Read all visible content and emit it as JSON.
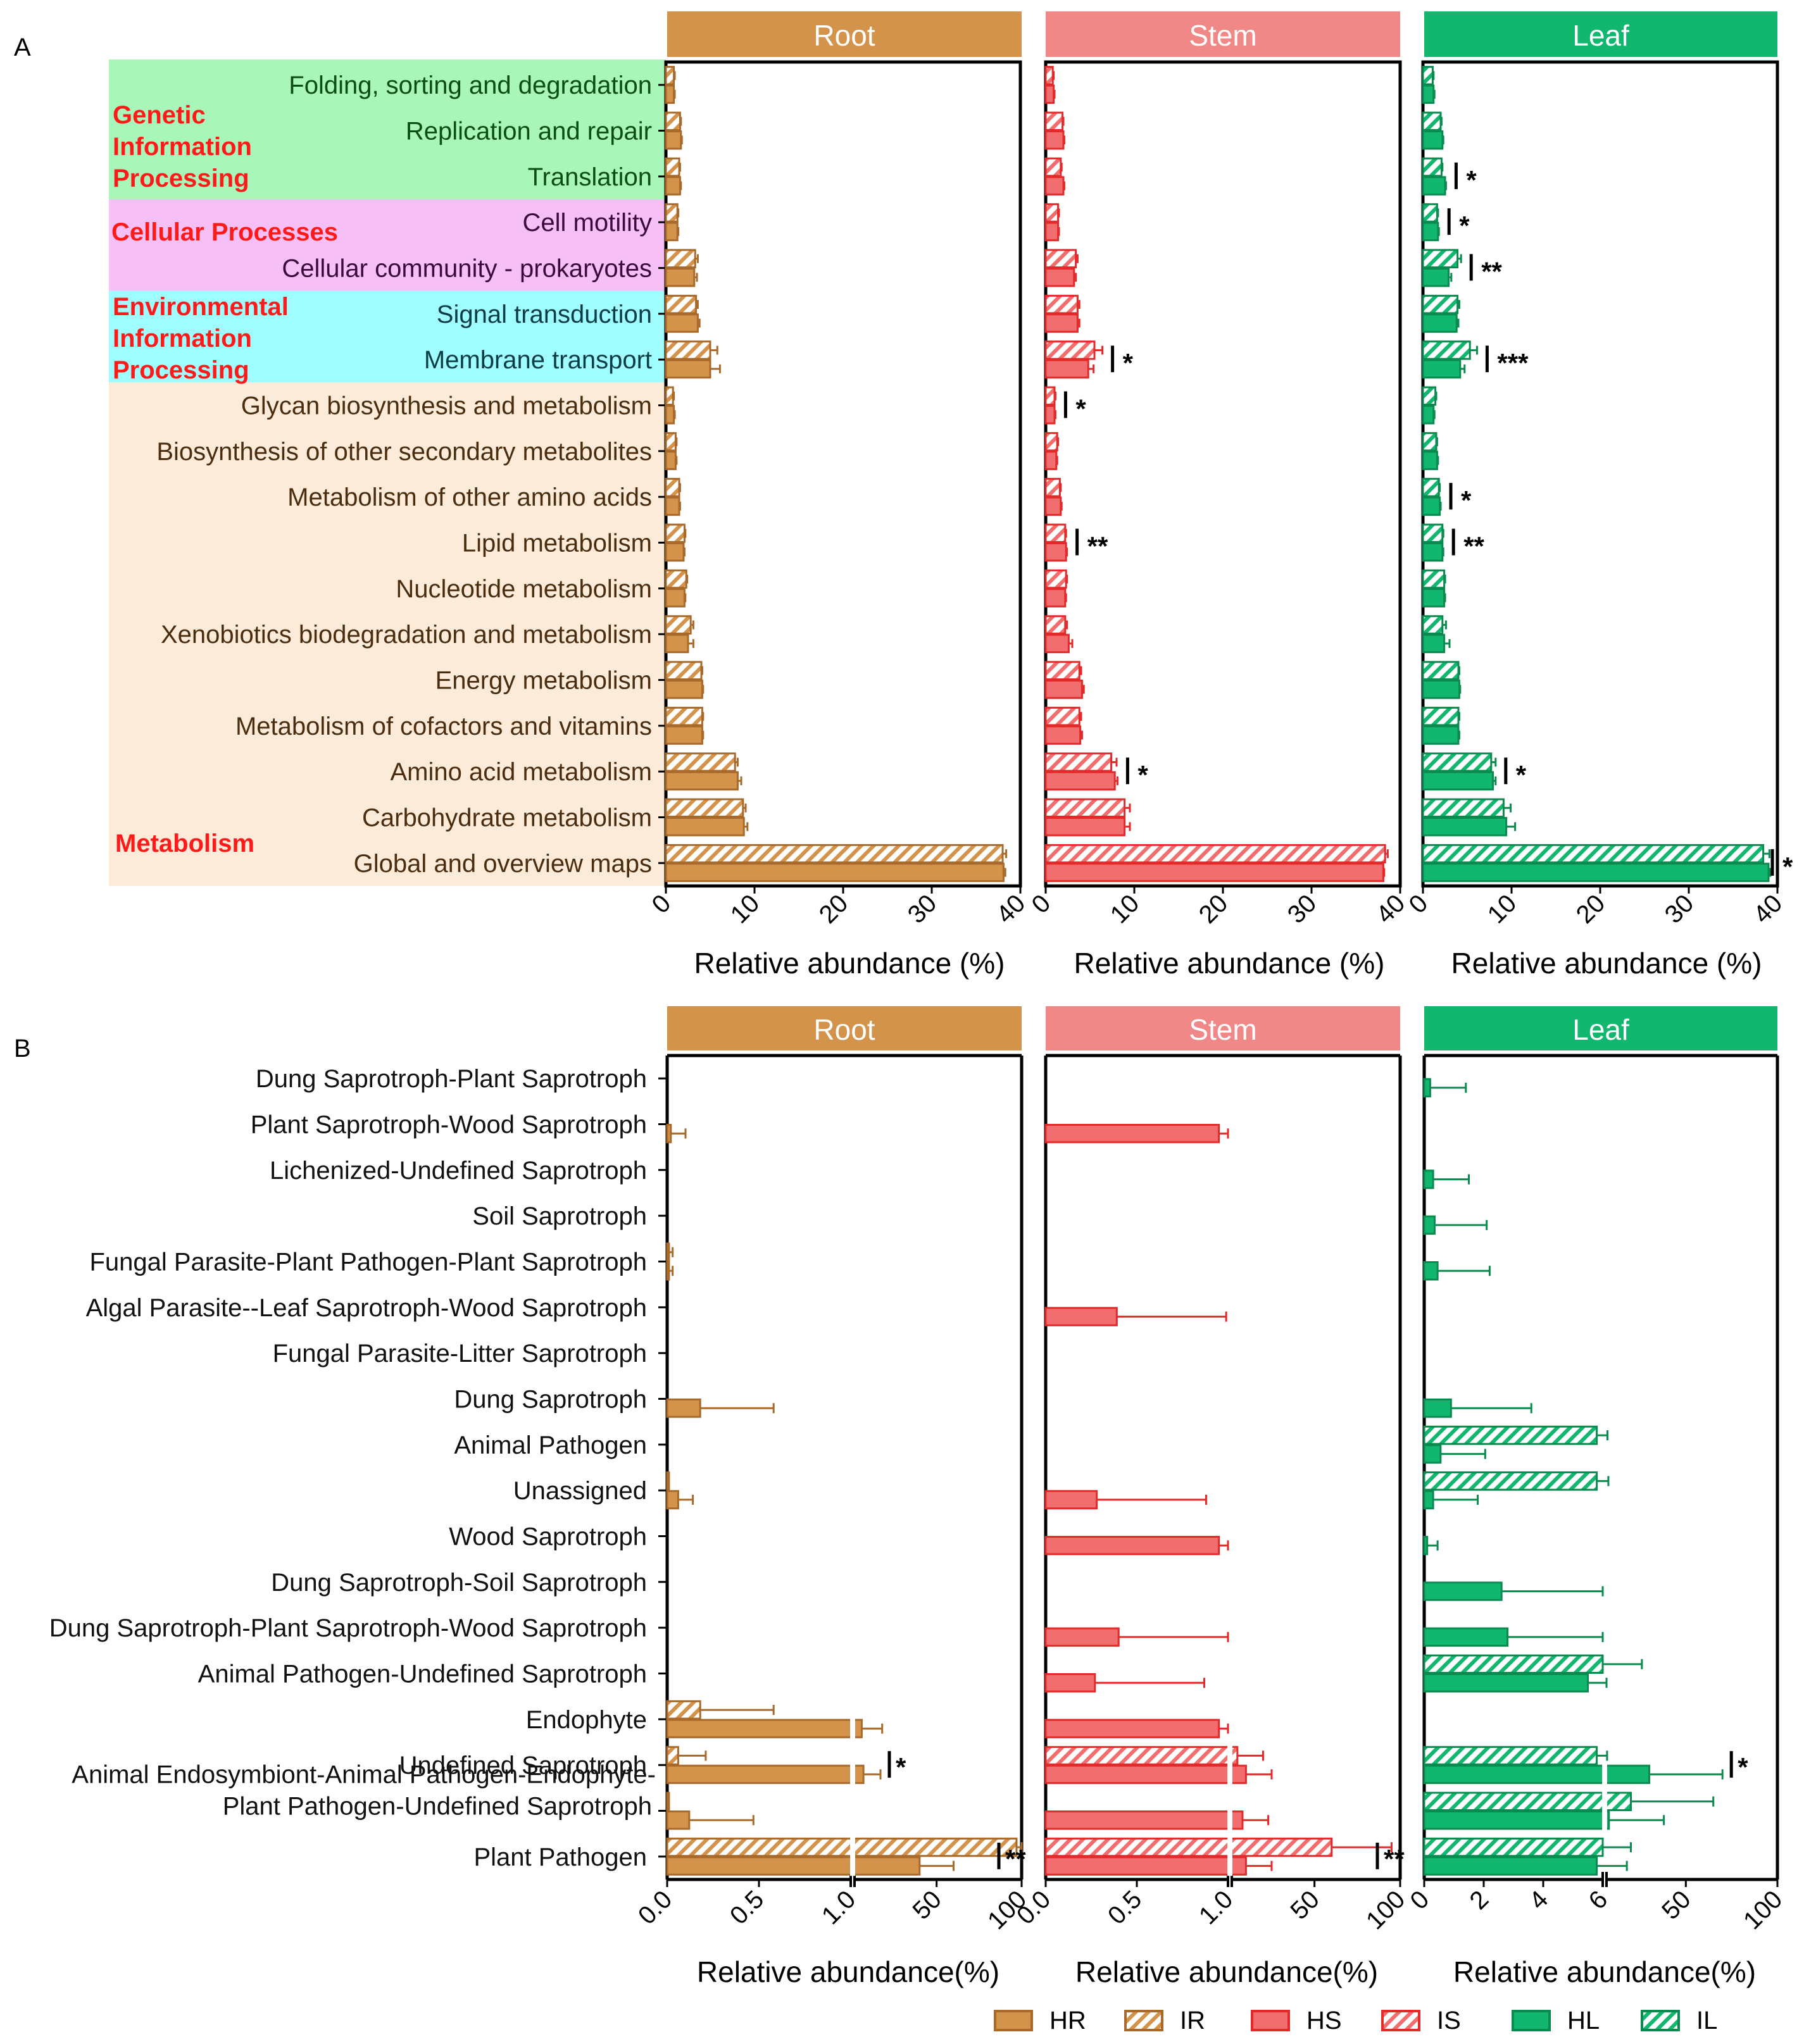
{
  "colors": {
    "root": "#d4934a",
    "root_dark": "#a86a2a",
    "stem": "#f08888",
    "stem_fill": "#f26d6d",
    "stem_dark": "#e22a2a",
    "leaf": "#12b76f",
    "leaf_dark": "#0a8a4f",
    "label_red": "#ff1a1a",
    "bg_genetic": "#a8f6b9",
    "bg_cellular": "#f6bff6",
    "bg_environmental": "#9ffcff",
    "bg_metabolism": "#fdebd9"
  },
  "panel_a": {
    "letter": "A",
    "organs": [
      "Root",
      "Stem",
      "Leaf"
    ],
    "xlabel": "Relative abundance (%)",
    "xticks": [
      "0",
      "10",
      "20",
      "30",
      "40"
    ],
    "categories": [
      {
        "name": "Genetic Information Processing",
        "lines": [
          "Genetic",
          "Information",
          "Processing"
        ],
        "rows": [
          0,
          2
        ]
      },
      {
        "name": "Cellular Processes",
        "lines": [
          "Cellular Processes"
        ],
        "rows": [
          3,
          4
        ]
      },
      {
        "name": "Environmental Information Processing",
        "lines": [
          "Environmental",
          "Information",
          "Processing"
        ],
        "rows": [
          5,
          6
        ]
      },
      {
        "name": "Metabolism",
        "lines": [
          "Metabolism"
        ],
        "rows": [
          7,
          17
        ]
      }
    ],
    "pathways": [
      "Folding, sorting and degradation",
      "Replication and repair",
      "Translation",
      "Cell motility",
      "Cellular community - prokaryotes",
      "Signal transduction",
      "Membrane transport",
      "Glycan biosynthesis and metabolism",
      "Biosynthesis of other secondary metabolites",
      "Metabolism of other amino acids",
      "Lipid metabolism",
      "Nucleotide metabolism",
      "Xenobiotics biodegradation and metabolism",
      "Energy metabolism",
      "Metabolism of cofactors and vitamins",
      "Amino acid metabolism",
      "Carbohydrate metabolism",
      "Global and overview maps"
    ]
  },
  "panel_b": {
    "letter": "B",
    "organs": [
      "Root",
      "Stem",
      "Leaf"
    ],
    "xlabel": "Relative abundance(%)",
    "guilds": [
      [
        "Dung Saprotroph-Plant Saprotroph"
      ],
      [
        "Plant Saprotroph-Wood Saprotroph"
      ],
      [
        "Lichenized-Undefined Saprotroph"
      ],
      [
        "Soil Saprotroph"
      ],
      [
        "Fungal Parasite-Plant Pathogen-Plant Saprotroph"
      ],
      [
        "Algal Parasite--Leaf Saprotroph-Wood Saprotroph"
      ],
      [
        "Fungal Parasite-Litter Saprotroph"
      ],
      [
        "Dung Saprotroph"
      ],
      [
        "Animal Pathogen"
      ],
      [
        "Unassigned"
      ],
      [
        "Wood Saprotroph"
      ],
      [
        "Dung Saprotroph-Soil Saprotroph"
      ],
      [
        "Dung Saprotroph-Plant Saprotroph-Wood Saprotroph"
      ],
      [
        "Animal Pathogen-Undefined Saprotroph"
      ],
      [
        "Endophyte"
      ],
      [
        "Undefined Saprotroph"
      ],
      [
        "Animal Endosymbiont-Animal Pathogen-Endophyte-",
        "Plant Pathogen-Undefined Saprotroph"
      ],
      [
        "Plant Pathogen"
      ]
    ],
    "xticks_root": [
      "0.0",
      "0.5",
      "1.0",
      "50",
      "100"
    ],
    "xticks_stem": [
      "0.0",
      "0.5",
      "1.0",
      "50",
      "100"
    ],
    "xticks_leaf": [
      "0",
      "2",
      "4",
      "6",
      "50",
      "100"
    ]
  },
  "legend": [
    {
      "label": "HR",
      "organ": "root",
      "hatched": false
    },
    {
      "label": "IR",
      "organ": "root",
      "hatched": true
    },
    {
      "label": "HS",
      "organ": "stem",
      "hatched": false
    },
    {
      "label": "IS",
      "organ": "stem",
      "hatched": true
    },
    {
      "label": "HL",
      "organ": "leaf",
      "hatched": false
    },
    {
      "label": "IL",
      "organ": "leaf",
      "hatched": true
    }
  ],
  "chart_data": [
    {
      "panel": "A",
      "type": "bar",
      "orientation": "horizontal",
      "xlabel": "Relative abundance (%)",
      "xlim": [
        0,
        40
      ],
      "categories": [
        "Folding, sorting and degradation",
        "Replication and repair",
        "Translation",
        "Cell motility",
        "Cellular community - prokaryotes",
        "Signal transduction",
        "Membrane transport",
        "Glycan biosynthesis and metabolism",
        "Biosynthesis of other secondary metabolites",
        "Metabolism of other amino acids",
        "Lipid metabolism",
        "Nucleotide metabolism",
        "Xenobiotics biodegradation and metabolism",
        "Energy metabolism",
        "Metabolism of cofactors and vitamins",
        "Amino acid metabolism",
        "Carbohydrate metabolism",
        "Global and overview maps"
      ],
      "facets": [
        {
          "organ": "Root",
          "series": [
            {
              "name": "IR",
              "values": [
                0.9,
                1.6,
                1.5,
                1.3,
                3.3,
                3.4,
                5.0,
                0.8,
                1.1,
                1.5,
                2.1,
                2.3,
                2.8,
                4.0,
                4.1,
                7.8,
                8.7,
                38.0
              ],
              "errors": [
                0.1,
                0.1,
                0.1,
                0.1,
                0.3,
                0.2,
                0.8,
                0.1,
                0.1,
                0.1,
                0.1,
                0.1,
                0.3,
                0.1,
                0.1,
                0.3,
                0.3,
                0.4
              ]
            },
            {
              "name": "HR",
              "values": [
                0.9,
                1.7,
                1.6,
                1.3,
                3.2,
                3.6,
                5.0,
                0.9,
                1.1,
                1.5,
                2.0,
                2.1,
                2.5,
                4.1,
                4.1,
                8.1,
                8.8,
                38.1
              ],
              "errors": [
                0.1,
                0.1,
                0.1,
                0.1,
                0.3,
                0.2,
                1.1,
                0.1,
                0.1,
                0.1,
                0.1,
                0.1,
                0.6,
                0.1,
                0.1,
                0.4,
                0.4,
                0.2
              ]
            }
          ],
          "significance": []
        },
        {
          "organ": "Stem",
          "series": [
            {
              "name": "IS",
              "values": [
                0.8,
                1.9,
                1.7,
                1.4,
                3.4,
                3.6,
                5.5,
                1.0,
                1.3,
                1.6,
                2.2,
                2.3,
                2.2,
                3.8,
                3.8,
                7.4,
                8.9,
                38.3
              ],
              "errors": [
                0.1,
                0.1,
                0.1,
                0.1,
                0.2,
                0.2,
                0.9,
                0.1,
                0.1,
                0.1,
                0.1,
                0.1,
                0.2,
                0.2,
                0.2,
                0.6,
                0.6,
                0.3
              ]
            },
            {
              "name": "HS",
              "values": [
                0.9,
                2.0,
                2.0,
                1.4,
                3.2,
                3.6,
                4.8,
                1.0,
                1.2,
                1.7,
                2.3,
                2.2,
                2.6,
                4.1,
                3.9,
                7.8,
                8.9,
                38.1
              ],
              "errors": [
                0.1,
                0.1,
                0.1,
                0.1,
                0.2,
                0.2,
                0.6,
                0.1,
                0.1,
                0.1,
                0.1,
                0.1,
                0.4,
                0.2,
                0.2,
                0.3,
                0.6,
                0.1
              ]
            }
          ],
          "significance": [
            {
              "row": "Membrane transport",
              "label": "*"
            },
            {
              "row": "Glycan biosynthesis and metabolism",
              "label": "*"
            },
            {
              "row": "Lipid metabolism",
              "label": "**"
            },
            {
              "row": "Amino acid metabolism",
              "label": "*"
            }
          ]
        },
        {
          "organ": "Leaf",
          "series": [
            {
              "name": "IL",
              "values": [
                1.1,
                2.0,
                2.1,
                1.6,
                3.9,
                3.9,
                5.3,
                1.4,
                1.5,
                1.8,
                2.2,
                2.4,
                2.2,
                4.0,
                4.0,
                7.7,
                9.1,
                38.4
              ],
              "errors": [
                0.1,
                0.1,
                0.1,
                0.1,
                0.4,
                0.2,
                0.8,
                0.1,
                0.1,
                0.1,
                0.1,
                0.1,
                0.4,
                0.1,
                0.1,
                0.5,
                0.8,
                0.7
              ]
            },
            {
              "name": "HL",
              "values": [
                1.2,
                2.2,
                2.5,
                1.7,
                2.9,
                3.8,
                4.2,
                1.2,
                1.6,
                1.9,
                2.2,
                2.4,
                2.4,
                4.1,
                4.0,
                7.9,
                9.4,
                39.0
              ],
              "errors": [
                0.1,
                0.1,
                0.1,
                0.1,
                0.3,
                0.2,
                0.5,
                0.1,
                0.1,
                0.1,
                0.1,
                0.1,
                0.6,
                0.1,
                0.1,
                0.3,
                1.0,
                0.2
              ]
            }
          ],
          "significance": [
            {
              "row": "Translation",
              "label": "*"
            },
            {
              "row": "Cell motility",
              "label": "*"
            },
            {
              "row": "Cellular community - prokaryotes",
              "label": "**"
            },
            {
              "row": "Membrane transport",
              "label": "***"
            },
            {
              "row": "Metabolism of other amino acids",
              "label": "*"
            },
            {
              "row": "Lipid metabolism",
              "label": "**"
            },
            {
              "row": "Amino acid metabolism",
              "label": "*"
            },
            {
              "row": "Global and overview maps",
              "label": "*"
            }
          ]
        }
      ]
    },
    {
      "panel": "B",
      "type": "bar",
      "orientation": "horizontal",
      "xlabel": "Relative abundance(%)",
      "x_axis": "broken",
      "categories": [
        "Dung Saprotroph-Plant Saprotroph",
        "Plant Saprotroph-Wood Saprotroph",
        "Lichenized-Undefined Saprotroph",
        "Soil Saprotroph",
        "Fungal Parasite-Plant Pathogen-Plant Saprotroph",
        "Algal Parasite--Leaf Saprotroph-Wood Saprotroph",
        "Fungal Parasite-Litter Saprotroph",
        "Dung Saprotroph",
        "Animal Pathogen",
        "Unassigned",
        "Wood Saprotroph",
        "Dung Saprotroph-Soil Saprotroph",
        "Dung Saprotroph-Plant Saprotroph-Wood Saprotroph",
        "Animal Pathogen-Undefined Saprotroph",
        "Endophyte",
        "Undefined Saprotroph",
        "Animal Endosymbiont-Animal Pathogen-Endophyte-Plant Pathogen-Undefined Saprotroph",
        "Plant Pathogen"
      ],
      "facets": [
        {
          "organ": "Root",
          "segments": [
            {
              "range": [
                0,
                1.0
              ]
            },
            {
              "range": [
                1.0,
                100
              ],
              "ticks": [
                50,
                100
              ]
            }
          ],
          "series": [
            {
              "name": "IR",
              "values": [
                0,
                0,
                0,
                0,
                0.01,
                0,
                0,
                0,
                0,
                0.01,
                0,
                0,
                0,
                0,
                0.18,
                0.06,
                0.01,
                97
              ],
              "errors": [
                0,
                0,
                0,
                0,
                0.02,
                0,
                0,
                0,
                0,
                0,
                0,
                0,
                0,
                0,
                0.4,
                0.15,
                0,
                3
              ]
            },
            {
              "name": "HR",
              "values": [
                0,
                0.02,
                0,
                0,
                0.01,
                0,
                0,
                0.18,
                0,
                0.06,
                0,
                0,
                0,
                0,
                6,
                7,
                0.12,
                40
              ],
              "errors": [
                0,
                0.08,
                0,
                0,
                0.02,
                0,
                0,
                0.4,
                0,
                0.08,
                0,
                0,
                0,
                0,
                12,
                10,
                0.35,
                20
              ]
            }
          ],
          "significance": [
            {
              "row": "Undefined Saprotroph",
              "label": "*"
            },
            {
              "row": "Plant Pathogen",
              "label": "**"
            }
          ]
        },
        {
          "organ": "Stem",
          "segments": [
            {
              "range": [
                0,
                1.0
              ]
            },
            {
              "range": [
                1.0,
                100
              ],
              "ticks": [
                50,
                100
              ]
            }
          ],
          "series": [
            {
              "name": "IS",
              "values": [
                0,
                0,
                0,
                0,
                0,
                0,
                0,
                0,
                0,
                0,
                0,
                0,
                0,
                0,
                0,
                5,
                0,
                60
              ],
              "errors": [
                0,
                0,
                0,
                0,
                0,
                0,
                0,
                0,
                0,
                0,
                0,
                0,
                0,
                0,
                0,
                15,
                0,
                35
              ]
            },
            {
              "name": "HS",
              "values": [
                0,
                0.95,
                0,
                0,
                0,
                0.39,
                0,
                0,
                0,
                0.28,
                0.95,
                0,
                0.4,
                0.27,
                0.95,
                10,
                8,
                10
              ],
              "errors": [
                0,
                0.05,
                0,
                0,
                0,
                0.6,
                0,
                0,
                0,
                0.6,
                0.05,
                0,
                0.6,
                0.6,
                0.05,
                15,
                15,
                15
              ]
            }
          ],
          "significance": [
            {
              "row": "Plant Pathogen",
              "label": "**"
            }
          ]
        },
        {
          "organ": "Leaf",
          "segments": [
            {
              "range": [
                0,
                6
              ]
            },
            {
              "range": [
                6,
                100
              ],
              "ticks": [
                50,
                100
              ]
            }
          ],
          "series": [
            {
              "name": "IL",
              "values": [
                0,
                0,
                0,
                0,
                0,
                0,
                0,
                0,
                5.8,
                5.8,
                0,
                0,
                0,
                6,
                0,
                5.8,
                20,
                6
              ],
              "errors": [
                0,
                0,
                0,
                0,
                0,
                0,
                0,
                0,
                1.4,
                1.9,
                0,
                0,
                0,
                20,
                0,
                1.2,
                45,
                14
              ]
            },
            {
              "name": "HL",
              "values": [
                0.2,
                0,
                0.3,
                0.35,
                0.45,
                0,
                0,
                0.9,
                0.55,
                0.3,
                0.1,
                2.6,
                2.8,
                5.5,
                0,
                30,
                8,
                5.8
              ],
              "errors": [
                1.2,
                0,
                1.2,
                1.75,
                1.75,
                0,
                0,
                2.7,
                1.5,
                1.5,
                0.35,
                3.4,
                3.2,
                1.2,
                0,
                40,
                30,
                12
              ]
            }
          ],
          "significance": [
            {
              "row": "Undefined Saprotroph",
              "label": "*"
            }
          ]
        }
      ]
    }
  ]
}
